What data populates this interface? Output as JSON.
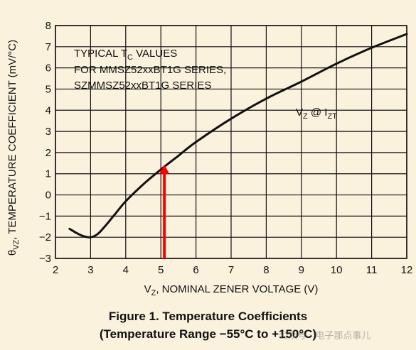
{
  "chart_data": {
    "type": "line",
    "xlabel": "V_Z, NOMINAL ZENER VOLTAGE (V)",
    "ylabel": "θ_VZ, TEMPERATURE COEFFICIENT (mV/°C)",
    "xlim": [
      2,
      12
    ],
    "ylim": [
      -3,
      8
    ],
    "x_ticks": [
      2,
      3,
      4,
      5,
      6,
      7,
      8,
      9,
      10,
      11,
      12
    ],
    "y_ticks": [
      -3,
      -2,
      -1,
      0,
      1,
      2,
      3,
      4,
      5,
      6,
      7,
      8
    ],
    "grid": true,
    "series": [
      {
        "name": "V_Z @ I_ZT",
        "x": [
          2.4,
          2.6,
          2.8,
          3.0,
          3.2,
          3.4,
          3.7,
          4.0,
          4.5,
          5.0,
          5.5,
          6.0,
          7.0,
          8.0,
          9.0,
          10.0,
          11.0,
          12.0
        ],
        "y": [
          -1.6,
          -1.8,
          -1.95,
          -2.0,
          -1.85,
          -1.5,
          -0.9,
          -0.3,
          0.5,
          1.2,
          1.85,
          2.5,
          3.6,
          4.55,
          5.35,
          6.2,
          6.95,
          7.6
        ]
      }
    ],
    "marker": {
      "x": 5.1,
      "y_from": -3,
      "y_to": 1.4,
      "color": "#ff0000"
    },
    "annotation_lines": [
      "TYPICAL T_C VALUES",
      "FOR MMSZ52xxBT1G SERIES,",
      "SZMMSZ52xxBT1G SERIES"
    ],
    "series_label": "V_Z @ I_ZT"
  },
  "caption": {
    "title": "Figure 1. Temperature Coefficients",
    "subtitle": "(Temperature Range −55°C to +150°C)"
  },
  "watermark": "公众号 · 电子那点事儿",
  "colors": {
    "background": "#fbf2dd",
    "grid": "#111111",
    "curve": "#111111",
    "arrow": "#ff0000"
  }
}
